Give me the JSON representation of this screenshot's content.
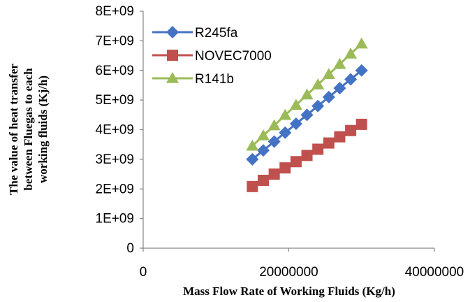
{
  "chart_data": {
    "type": "scatter",
    "title": "",
    "xlabel": "Mass Flow Rate of Working Fluids (Kg/h)",
    "ylabel_lines": [
      "The value of heat transfer",
      "between Fluegas to each",
      "working fluids (Kj/h)"
    ],
    "xlim": [
      0,
      40000000
    ],
    "ylim": [
      0,
      8000000000
    ],
    "x_ticks": [
      0,
      20000000,
      40000000
    ],
    "x_tick_labels": [
      "0",
      "20000000",
      "40000000"
    ],
    "y_ticks": [
      0,
      1000000000,
      2000000000,
      3000000000,
      4000000000,
      5000000000,
      6000000000,
      7000000000,
      8000000000
    ],
    "y_tick_labels": [
      "0",
      "1E+09",
      "2E+09",
      "3E+09",
      "4E+09",
      "5E+09",
      "6E+09",
      "7E+09",
      "8E+09"
    ],
    "grid": false,
    "legend_position": "top-left",
    "x": [
      15000000,
      16500000,
      18000000,
      19500000,
      21000000,
      22500000,
      24000000,
      25500000,
      27000000,
      28500000,
      30000000
    ],
    "series": [
      {
        "name": "R245fa",
        "color": "#4472c4",
        "marker": "diamond",
        "values": [
          3000000000,
          3300000000,
          3600000000,
          3900000000,
          4200000000,
          4500000000,
          4800000000,
          5100000000,
          5400000000,
          5700000000,
          6000000000
        ]
      },
      {
        "name": "NOVEC7000",
        "color": "#c0504d",
        "marker": "square",
        "values": [
          2080000000,
          2290000000,
          2500000000,
          2710000000,
          2920000000,
          3130000000,
          3340000000,
          3550000000,
          3760000000,
          3970000000,
          4180000000
        ]
      },
      {
        "name": "R141b",
        "color": "#9bbb59",
        "marker": "triangle",
        "values": [
          3450000000,
          3800000000,
          4140000000,
          4490000000,
          4830000000,
          5180000000,
          5520000000,
          5870000000,
          6210000000,
          6560000000,
          6900000000
        ]
      }
    ]
  }
}
